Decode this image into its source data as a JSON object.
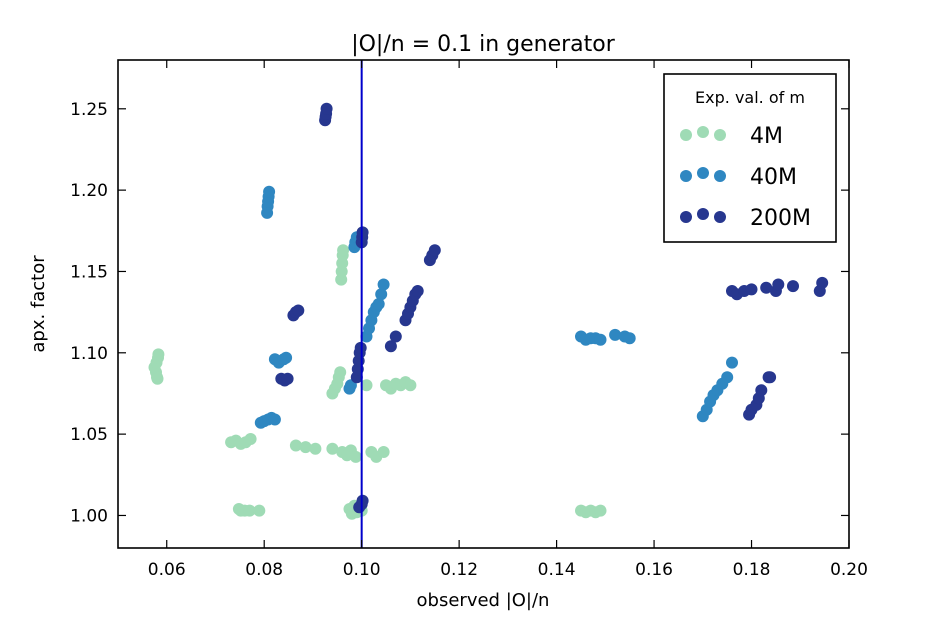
{
  "chart_data": {
    "type": "scatter",
    "title": "|O|/n = 0.1 in generator",
    "xlabel": "observed |O|/n",
    "ylabel": "apx. factor",
    "xlim": [
      0.05,
      0.2
    ],
    "ylim": [
      0.98,
      1.28
    ],
    "xticks": [
      0.06,
      0.08,
      0.1,
      0.12,
      0.14,
      0.16,
      0.18,
      0.2
    ],
    "xtick_labels": [
      "0.06",
      "0.08",
      "0.10",
      "0.12",
      "0.14",
      "0.16",
      "0.18",
      "0.20"
    ],
    "yticks": [
      1.0,
      1.05,
      1.1,
      1.15,
      1.2,
      1.25
    ],
    "ytick_labels": [
      "1.00",
      "1.05",
      "1.10",
      "1.15",
      "1.20",
      "1.25"
    ],
    "grid": false,
    "reference_line": {
      "x": 0.1,
      "color": "#0000cc"
    },
    "legend": {
      "title": "Exp. val. of m",
      "placement": "top-right"
    },
    "series": [
      {
        "name": "4M",
        "color": "#9fdbb5",
        "points": [
          [
            0.0575,
            1.091
          ],
          [
            0.0578,
            1.088
          ],
          [
            0.058,
            1.085
          ],
          [
            0.0581,
            1.084
          ],
          [
            0.0579,
            1.094
          ],
          [
            0.0582,
            1.097
          ],
          [
            0.0583,
            1.099
          ],
          [
            0.0732,
            1.045
          ],
          [
            0.0742,
            1.046
          ],
          [
            0.0752,
            1.044
          ],
          [
            0.0762,
            1.045
          ],
          [
            0.0772,
            1.047
          ],
          [
            0.0748,
            1.004
          ],
          [
            0.0752,
            1.003
          ],
          [
            0.076,
            1.003
          ],
          [
            0.077,
            1.003
          ],
          [
            0.079,
            1.003
          ],
          [
            0.0865,
            1.043
          ],
          [
            0.0885,
            1.042
          ],
          [
            0.0905,
            1.041
          ],
          [
            0.094,
            1.041
          ],
          [
            0.096,
            1.039
          ],
          [
            0.097,
            1.037
          ],
          [
            0.0978,
            1.04
          ],
          [
            0.0988,
            1.036
          ],
          [
            0.094,
            1.075
          ],
          [
            0.0945,
            1.078
          ],
          [
            0.095,
            1.081
          ],
          [
            0.0953,
            1.085
          ],
          [
            0.0956,
            1.088
          ],
          [
            0.0958,
            1.145
          ],
          [
            0.0959,
            1.15
          ],
          [
            0.096,
            1.155
          ],
          [
            0.0961,
            1.16
          ],
          [
            0.0962,
            1.163
          ],
          [
            0.0975,
            1.004
          ],
          [
            0.098,
            1.001
          ],
          [
            0.099,
            1.002
          ],
          [
            0.1,
            1.003
          ],
          [
            0.0985,
            1.006
          ],
          [
            0.101,
            1.08
          ],
          [
            0.105,
            1.08
          ],
          [
            0.106,
            1.078
          ],
          [
            0.107,
            1.081
          ],
          [
            0.108,
            1.08
          ],
          [
            0.109,
            1.082
          ],
          [
            0.11,
            1.08
          ],
          [
            0.102,
            1.039
          ],
          [
            0.103,
            1.036
          ],
          [
            0.1045,
            1.039
          ],
          [
            0.145,
            1.003
          ],
          [
            0.146,
            1.002
          ],
          [
            0.147,
            1.003
          ],
          [
            0.148,
            1.002
          ],
          [
            0.149,
            1.003
          ]
        ]
      },
      {
        "name": "40M",
        "color": "#2f87c1",
        "points": [
          [
            0.0793,
            1.057
          ],
          [
            0.08,
            1.058
          ],
          [
            0.0808,
            1.059
          ],
          [
            0.0815,
            1.06
          ],
          [
            0.0822,
            1.059
          ],
          [
            0.0806,
            1.186
          ],
          [
            0.0807,
            1.19
          ],
          [
            0.0808,
            1.193
          ],
          [
            0.0809,
            1.196
          ],
          [
            0.081,
            1.199
          ],
          [
            0.0822,
            1.096
          ],
          [
            0.083,
            1.094
          ],
          [
            0.084,
            1.096
          ],
          [
            0.0845,
            1.097
          ],
          [
            0.0975,
            1.078
          ],
          [
            0.0978,
            1.08
          ],
          [
            0.0985,
            1.165
          ],
          [
            0.0987,
            1.168
          ],
          [
            0.099,
            1.171
          ],
          [
            0.101,
            1.11
          ],
          [
            0.1015,
            1.115
          ],
          [
            0.102,
            1.12
          ],
          [
            0.1025,
            1.125
          ],
          [
            0.103,
            1.128
          ],
          [
            0.1035,
            1.13
          ],
          [
            0.104,
            1.136
          ],
          [
            0.1045,
            1.142
          ],
          [
            0.145,
            1.11
          ],
          [
            0.146,
            1.108
          ],
          [
            0.147,
            1.109
          ],
          [
            0.148,
            1.109
          ],
          [
            0.149,
            1.108
          ],
          [
            0.152,
            1.111
          ],
          [
            0.154,
            1.11
          ],
          [
            0.155,
            1.109
          ],
          [
            0.17,
            1.061
          ],
          [
            0.1708,
            1.065
          ],
          [
            0.1715,
            1.07
          ],
          [
            0.1722,
            1.074
          ],
          [
            0.173,
            1.077
          ],
          [
            0.174,
            1.081
          ],
          [
            0.175,
            1.085
          ],
          [
            0.176,
            1.094
          ]
        ]
      },
      {
        "name": "200M",
        "color": "#27378f",
        "points": [
          [
            0.0925,
            1.243
          ],
          [
            0.0926,
            1.245
          ],
          [
            0.0927,
            1.247
          ],
          [
            0.0928,
            1.25
          ],
          [
            0.0835,
            1.084
          ],
          [
            0.0842,
            1.083
          ],
          [
            0.0848,
            1.084
          ],
          [
            0.086,
            1.123
          ],
          [
            0.0865,
            1.125
          ],
          [
            0.087,
            1.126
          ],
          [
            0.099,
            1.085
          ],
          [
            0.0992,
            1.09
          ],
          [
            0.0994,
            1.095
          ],
          [
            0.0996,
            1.1
          ],
          [
            0.0998,
            1.103
          ],
          [
            0.0995,
            1.005
          ],
          [
            0.1,
            1.007
          ],
          [
            0.1002,
            1.009
          ],
          [
            0.1,
            1.168
          ],
          [
            0.1001,
            1.171
          ],
          [
            0.1002,
            1.174
          ],
          [
            0.106,
            1.104
          ],
          [
            0.107,
            1.11
          ],
          [
            0.109,
            1.12
          ],
          [
            0.1095,
            1.124
          ],
          [
            0.11,
            1.128
          ],
          [
            0.1105,
            1.132
          ],
          [
            0.111,
            1.136
          ],
          [
            0.1115,
            1.138
          ],
          [
            0.114,
            1.157
          ],
          [
            0.1145,
            1.16
          ],
          [
            0.115,
            1.163
          ],
          [
            0.176,
            1.138
          ],
          [
            0.177,
            1.136
          ],
          [
            0.1785,
            1.138
          ],
          [
            0.18,
            1.139
          ],
          [
            0.183,
            1.14
          ],
          [
            0.185,
            1.138
          ],
          [
            0.1855,
            1.142
          ],
          [
            0.1885,
            1.141
          ],
          [
            0.194,
            1.138
          ],
          [
            0.1945,
            1.143
          ],
          [
            0.1795,
            1.062
          ],
          [
            0.18,
            1.065
          ],
          [
            0.181,
            1.068
          ],
          [
            0.1815,
            1.072
          ],
          [
            0.182,
            1.077
          ],
          [
            0.1835,
            1.085
          ],
          [
            0.1838,
            1.085
          ]
        ]
      }
    ]
  }
}
